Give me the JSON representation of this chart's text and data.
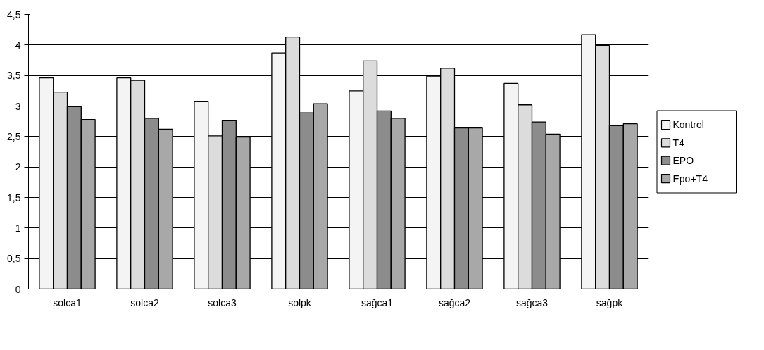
{
  "chart_data": {
    "type": "bar",
    "categories": [
      "solca1",
      "solca2",
      "solca3",
      "solpk",
      "sağca1",
      "sağca2",
      "sağca3",
      "sağpk"
    ],
    "series": [
      {
        "name": "Kontrol",
        "color": "#f4f4f4",
        "values": [
          3.46,
          3.46,
          3.07,
          3.87,
          3.25,
          3.49,
          3.37,
          4.17
        ]
      },
      {
        "name": "T4",
        "color": "#dcdcdc",
        "values": [
          3.23,
          3.42,
          2.51,
          4.13,
          3.74,
          3.62,
          3.02,
          3.99
        ]
      },
      {
        "name": "EPO",
        "color": "#8c8c8c",
        "values": [
          2.99,
          2.8,
          2.76,
          2.89,
          2.92,
          2.64,
          2.74,
          2.68
        ]
      },
      {
        "name": "Epo+T4",
        "color": "#a8a8a8",
        "values": [
          2.78,
          2.62,
          2.49,
          3.04,
          2.8,
          2.64,
          2.54,
          2.71
        ]
      }
    ],
    "ylim": [
      0,
      4.5
    ],
    "yticks": [
      0,
      {
        "value": 0.5,
        "label": "0,5"
      },
      1,
      {
        "value": 1.5,
        "label": "1,5"
      },
      2,
      {
        "value": 2.5,
        "label": "2,5"
      },
      3,
      {
        "value": 3.5,
        "label": "3,5"
      },
      4,
      {
        "value": 4.5,
        "label": "4,5"
      }
    ],
    "grid": "y",
    "legend": "right"
  }
}
